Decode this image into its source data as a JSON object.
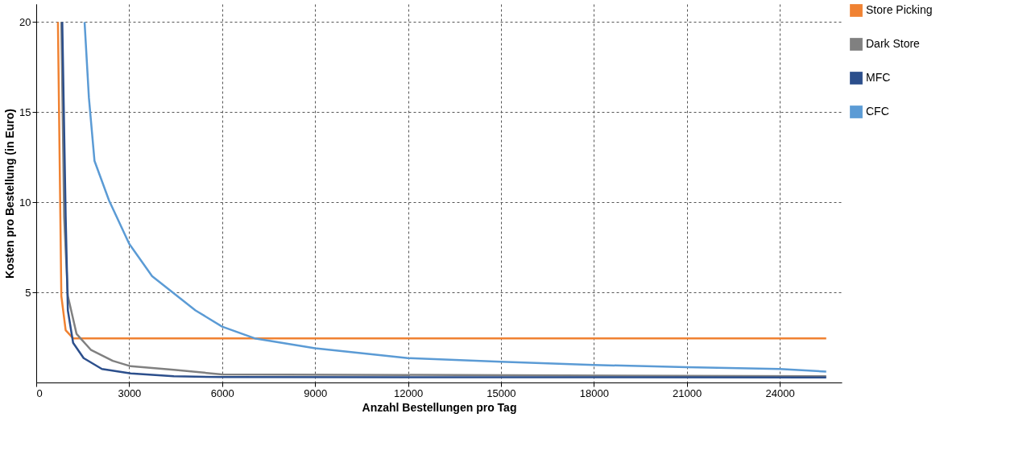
{
  "chart_data": {
    "type": "line",
    "xlabel": "Anzahl Bestellungen pro Tag",
    "ylabel": "Kosten pro Bestellung (in Euro)",
    "xlim": [
      0,
      26000
    ],
    "ylim": [
      0,
      21
    ],
    "xticks": [
      0,
      3000,
      6000,
      9000,
      12000,
      15000,
      18000,
      21000,
      24000
    ],
    "yticks": [
      5,
      10,
      15,
      20
    ],
    "grid": true,
    "legend": "right",
    "line_style": "solid",
    "series": [
      {
        "name": "Store Picking",
        "color": "#f08232",
        "x": [
          700,
          810,
          950,
          1190,
          2000,
          25500
        ],
        "values": [
          20,
          4.8,
          2.9,
          2.45,
          2.45,
          2.45
        ]
      },
      {
        "name": "Dark Store",
        "color": "#808080",
        "x": [
          810,
          900,
          1020,
          1300,
          1770,
          2470,
          3050,
          4440,
          6000,
          25500
        ],
        "values": [
          20,
          9.2,
          4.8,
          2.7,
          1.8,
          1.2,
          0.9,
          0.7,
          0.45,
          0.35
        ]
      },
      {
        "name": "MFC",
        "color": "#2c4f8c",
        "x": [
          840,
          950,
          1020,
          1190,
          1530,
          2120,
          3050,
          4440,
          6000,
          25500
        ],
        "values": [
          20,
          9.2,
          4,
          2.2,
          1.35,
          0.75,
          0.5,
          0.35,
          0.3,
          0.28
        ]
      },
      {
        "name": "CFC",
        "color": "#5b9bd5",
        "x": [
          1560,
          1700,
          1880,
          2350,
          3000,
          3740,
          5140,
          6000,
          7050,
          9000,
          12000,
          15000,
          18000,
          21000,
          24000,
          25500
        ],
        "values": [
          20,
          15.8,
          12.3,
          10.1,
          7.7,
          5.9,
          4.0,
          3.1,
          2.45,
          1.9,
          1.35,
          1.15,
          0.97,
          0.85,
          0.75,
          0.6
        ]
      }
    ]
  }
}
